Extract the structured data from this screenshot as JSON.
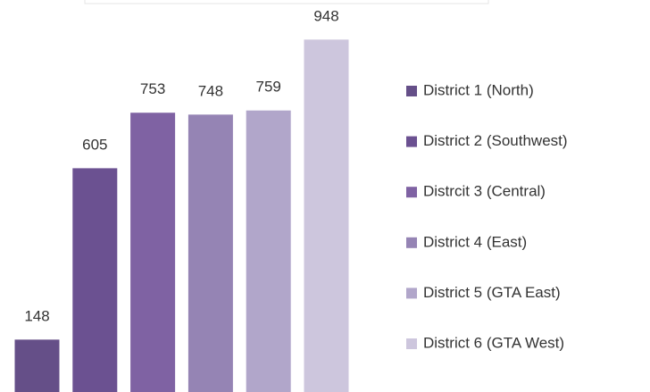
{
  "chart_data": {
    "type": "bar",
    "categories": [
      "District 1 (North)",
      "District 2 (Southwest)",
      "Distrcit 3 (Central)",
      "District 4 (East)",
      "District 5 (GTA East)",
      "District 6 (GTA West)"
    ],
    "values": [
      148,
      605,
      753,
      748,
      759,
      948
    ],
    "colors": [
      "#654f88",
      "#6b5191",
      "#7f62a3",
      "#9584b4",
      "#b1a6ca",
      "#cdc6dd"
    ],
    "legend": "right"
  }
}
